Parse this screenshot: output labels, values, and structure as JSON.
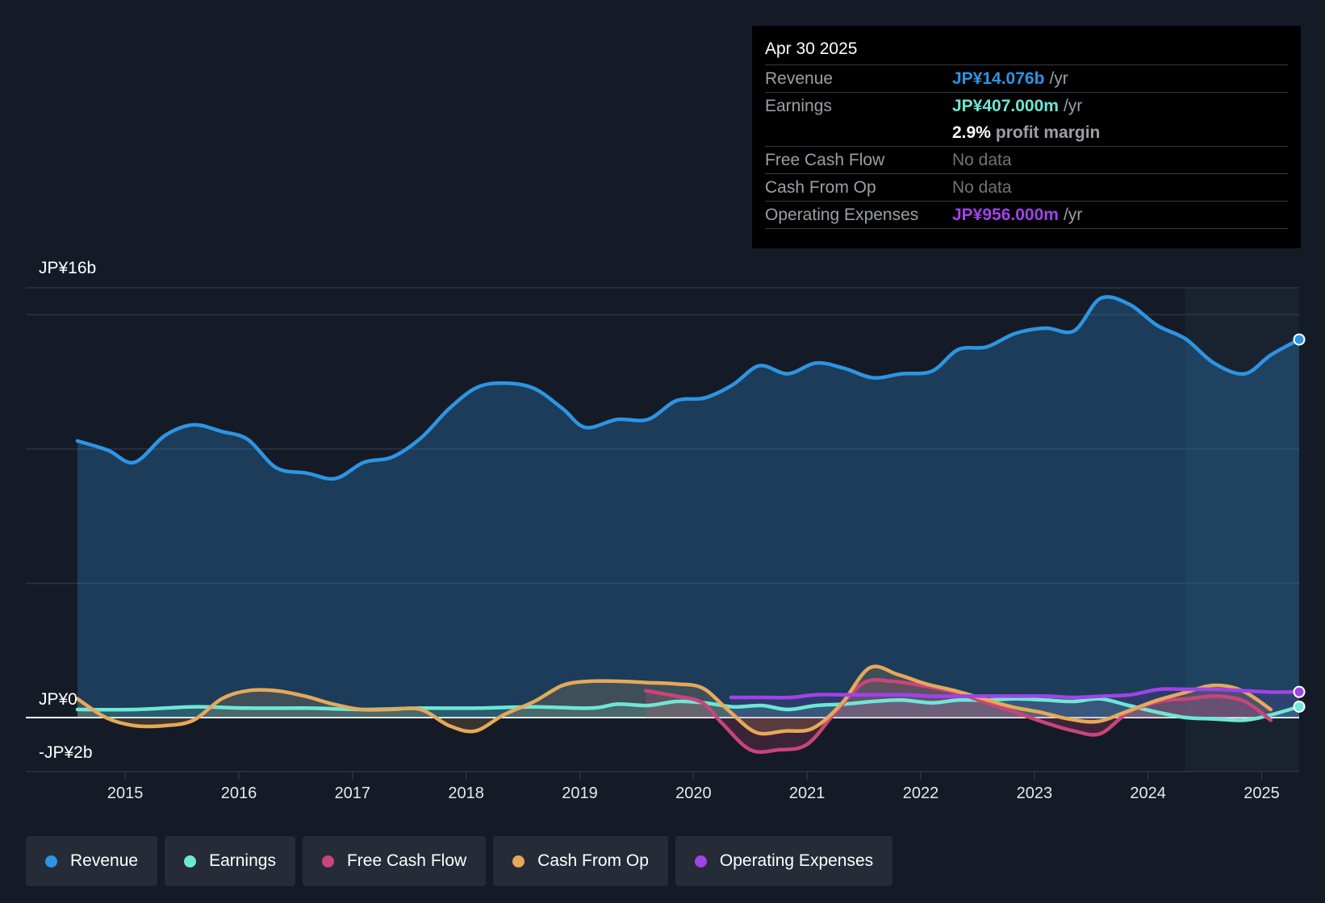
{
  "colors": {
    "revenue": "#2d95e3",
    "earnings": "#6ee7d3",
    "free_cash_flow": "#c8457a",
    "cash_from_op": "#e5a95a",
    "operating_expenses": "#a043e8"
  },
  "tooltip": {
    "date": "Apr 30 2025",
    "rows": [
      {
        "label": "Revenue",
        "value": "JP¥14.076b",
        "unit": "/yr"
      },
      {
        "label": "Earnings",
        "value": "JP¥407.000m",
        "unit": "/yr"
      },
      {
        "label": "",
        "value": "2.9%",
        "unit": "profit margin"
      },
      {
        "label": "Free Cash Flow",
        "value": "No data",
        "unit": ""
      },
      {
        "label": "Cash From Op",
        "value": "No data",
        "unit": ""
      },
      {
        "label": "Operating Expenses",
        "value": "JP¥956.000m",
        "unit": "/yr"
      }
    ]
  },
  "legend": [
    {
      "key": "revenue",
      "label": "Revenue"
    },
    {
      "key": "earnings",
      "label": "Earnings"
    },
    {
      "key": "free_cash_flow",
      "label": "Free Cash Flow"
    },
    {
      "key": "cash_from_op",
      "label": "Cash From Op"
    },
    {
      "key": "operating_expenses",
      "label": "Operating Expenses"
    }
  ],
  "chart_data": {
    "type": "line",
    "title": "",
    "xlabel": "",
    "ylabel": "",
    "y_labels": [
      "JP¥16b",
      "JP¥0",
      "-JP¥2b"
    ],
    "ylim": [
      -2,
      16
    ],
    "xlim": [
      2014.58,
      2025.33
    ],
    "x_ticks": [
      "2015",
      "2016",
      "2017",
      "2018",
      "2019",
      "2020",
      "2021",
      "2022",
      "2023",
      "2024",
      "2025"
    ],
    "x_tick_values": [
      2015,
      2016,
      2017,
      2018,
      2019,
      2020,
      2021,
      2022,
      2023,
      2024,
      2025
    ],
    "forecast_start": 2024.33,
    "series": [
      {
        "name": "Revenue",
        "key": "revenue",
        "values": [
          [
            2014.58,
            10.3
          ],
          [
            2014.85,
            9.95
          ],
          [
            2015.08,
            9.5
          ],
          [
            2015.35,
            10.5
          ],
          [
            2015.6,
            10.9
          ],
          [
            2015.85,
            10.65
          ],
          [
            2016.08,
            10.35
          ],
          [
            2016.33,
            9.3
          ],
          [
            2016.6,
            9.1
          ],
          [
            2016.85,
            8.9
          ],
          [
            2017.1,
            9.5
          ],
          [
            2017.35,
            9.7
          ],
          [
            2017.6,
            10.4
          ],
          [
            2017.85,
            11.5
          ],
          [
            2018.1,
            12.3
          ],
          [
            2018.35,
            12.45
          ],
          [
            2018.6,
            12.25
          ],
          [
            2018.85,
            11.5
          ],
          [
            2019.05,
            10.8
          ],
          [
            2019.33,
            11.1
          ],
          [
            2019.6,
            11.1
          ],
          [
            2019.85,
            11.8
          ],
          [
            2020.1,
            11.9
          ],
          [
            2020.35,
            12.4
          ],
          [
            2020.58,
            13.1
          ],
          [
            2020.83,
            12.8
          ],
          [
            2021.08,
            13.2
          ],
          [
            2021.33,
            13.0
          ],
          [
            2021.58,
            12.65
          ],
          [
            2021.83,
            12.8
          ],
          [
            2022.1,
            12.9
          ],
          [
            2022.33,
            13.7
          ],
          [
            2022.58,
            13.8
          ],
          [
            2022.83,
            14.3
          ],
          [
            2023.1,
            14.5
          ],
          [
            2023.35,
            14.4
          ],
          [
            2023.58,
            15.6
          ],
          [
            2023.83,
            15.4
          ],
          [
            2024.08,
            14.6
          ],
          [
            2024.33,
            14.1
          ],
          [
            2024.58,
            13.2
          ],
          [
            2024.85,
            12.8
          ],
          [
            2025.08,
            13.5
          ],
          [
            2025.33,
            14.076
          ]
        ]
      },
      {
        "name": "Earnings",
        "key": "earnings",
        "values": [
          [
            2014.58,
            0.3
          ],
          [
            2015.08,
            0.3
          ],
          [
            2015.6,
            0.4
          ],
          [
            2016.08,
            0.35
          ],
          [
            2016.6,
            0.35
          ],
          [
            2017.1,
            0.3
          ],
          [
            2017.6,
            0.35
          ],
          [
            2018.1,
            0.35
          ],
          [
            2018.6,
            0.4
          ],
          [
            2019.1,
            0.35
          ],
          [
            2019.33,
            0.5
          ],
          [
            2019.6,
            0.45
          ],
          [
            2019.85,
            0.6
          ],
          [
            2020.1,
            0.55
          ],
          [
            2020.35,
            0.4
          ],
          [
            2020.6,
            0.45
          ],
          [
            2020.83,
            0.3
          ],
          [
            2021.08,
            0.45
          ],
          [
            2021.33,
            0.5
          ],
          [
            2021.58,
            0.6
          ],
          [
            2021.83,
            0.65
          ],
          [
            2022.1,
            0.55
          ],
          [
            2022.33,
            0.65
          ],
          [
            2022.58,
            0.65
          ],
          [
            2022.83,
            0.7
          ],
          [
            2023.1,
            0.65
          ],
          [
            2023.35,
            0.6
          ],
          [
            2023.58,
            0.7
          ],
          [
            2023.83,
            0.45
          ],
          [
            2024.08,
            0.2
          ],
          [
            2024.33,
            0.0
          ],
          [
            2024.58,
            -0.05
          ],
          [
            2024.85,
            -0.1
          ],
          [
            2025.08,
            0.1
          ],
          [
            2025.33,
            0.407
          ]
        ]
      },
      {
        "name": "Free Cash Flow",
        "key": "free_cash_flow",
        "values": [
          [
            2019.58,
            1.0
          ],
          [
            2019.85,
            0.8
          ],
          [
            2020.08,
            0.55
          ],
          [
            2020.25,
            -0.2
          ],
          [
            2020.5,
            -1.2
          ],
          [
            2020.75,
            -1.2
          ],
          [
            2021.0,
            -1.0
          ],
          [
            2021.25,
            0.2
          ],
          [
            2021.5,
            1.3
          ],
          [
            2021.75,
            1.35
          ],
          [
            2022.0,
            1.2
          ],
          [
            2022.33,
            0.9
          ],
          [
            2022.58,
            0.55
          ],
          [
            2022.83,
            0.2
          ],
          [
            2023.1,
            -0.2
          ],
          [
            2023.35,
            -0.5
          ],
          [
            2023.58,
            -0.6
          ],
          [
            2023.83,
            0.2
          ],
          [
            2024.1,
            0.6
          ],
          [
            2024.35,
            0.7
          ],
          [
            2024.6,
            0.8
          ],
          [
            2024.85,
            0.6
          ],
          [
            2025.08,
            -0.1
          ]
        ]
      },
      {
        "name": "Cash From Op",
        "key": "cash_from_op",
        "values": [
          [
            2014.58,
            0.7
          ],
          [
            2014.83,
            0.0
          ],
          [
            2015.08,
            -0.3
          ],
          [
            2015.35,
            -0.3
          ],
          [
            2015.6,
            -0.1
          ],
          [
            2015.85,
            0.7
          ],
          [
            2016.08,
            1.0
          ],
          [
            2016.33,
            1.0
          ],
          [
            2016.58,
            0.8
          ],
          [
            2016.83,
            0.5
          ],
          [
            2017.08,
            0.3
          ],
          [
            2017.33,
            0.3
          ],
          [
            2017.6,
            0.3
          ],
          [
            2017.85,
            -0.3
          ],
          [
            2018.08,
            -0.5
          ],
          [
            2018.33,
            0.1
          ],
          [
            2018.6,
            0.6
          ],
          [
            2018.85,
            1.2
          ],
          [
            2019.08,
            1.35
          ],
          [
            2019.35,
            1.35
          ],
          [
            2019.6,
            1.3
          ],
          [
            2019.85,
            1.25
          ],
          [
            2020.08,
            1.1
          ],
          [
            2020.3,
            0.3
          ],
          [
            2020.55,
            -0.55
          ],
          [
            2020.8,
            -0.5
          ],
          [
            2021.05,
            -0.4
          ],
          [
            2021.3,
            0.5
          ],
          [
            2021.55,
            1.85
          ],
          [
            2021.8,
            1.6
          ],
          [
            2022.05,
            1.25
          ],
          [
            2022.3,
            1.0
          ],
          [
            2022.55,
            0.7
          ],
          [
            2022.8,
            0.4
          ],
          [
            2023.05,
            0.2
          ],
          [
            2023.3,
            -0.05
          ],
          [
            2023.55,
            -0.15
          ],
          [
            2023.8,
            0.2
          ],
          [
            2024.05,
            0.6
          ],
          [
            2024.3,
            0.9
          ],
          [
            2024.58,
            1.2
          ],
          [
            2024.83,
            1.0
          ],
          [
            2025.08,
            0.3
          ]
        ]
      },
      {
        "name": "Operating Expenses",
        "key": "operating_expenses",
        "values": [
          [
            2020.33,
            0.75
          ],
          [
            2020.6,
            0.75
          ],
          [
            2020.85,
            0.75
          ],
          [
            2021.08,
            0.85
          ],
          [
            2021.33,
            0.85
          ],
          [
            2021.6,
            0.85
          ],
          [
            2021.85,
            0.85
          ],
          [
            2022.1,
            0.8
          ],
          [
            2022.35,
            0.8
          ],
          [
            2022.6,
            0.8
          ],
          [
            2022.85,
            0.8
          ],
          [
            2023.1,
            0.8
          ],
          [
            2023.35,
            0.75
          ],
          [
            2023.6,
            0.8
          ],
          [
            2023.85,
            0.85
          ],
          [
            2024.1,
            1.05
          ],
          [
            2024.35,
            1.05
          ],
          [
            2024.6,
            1.05
          ],
          [
            2024.85,
            1.0
          ],
          [
            2025.08,
            0.95
          ],
          [
            2025.33,
            0.956
          ]
        ]
      }
    ]
  }
}
